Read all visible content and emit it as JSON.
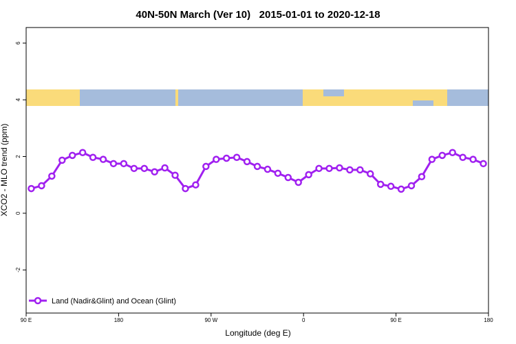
{
  "chart_data": {
    "type": "line",
    "title": "40N-50N March (Ver 10)   2015-01-01 to 2020-12-18",
    "xlabel": "Longitude (deg E)",
    "ylabel": "XCO2 - MLO trend (ppm)",
    "x": [
      95,
      105,
      115,
      125,
      135,
      145,
      155,
      165,
      175,
      185,
      195,
      205,
      215,
      225,
      235,
      245,
      255,
      265,
      275,
      285,
      295,
      305,
      315,
      325,
      335,
      345,
      355,
      365,
      375,
      385,
      395,
      405,
      415,
      425,
      435,
      445,
      455,
      465,
      475,
      485,
      495,
      505,
      515,
      525,
      535
    ],
    "series": [
      {
        "name": "Land (Nadir&Glint) and Ocean (Glint)",
        "color": "#a020f0",
        "values": [
          0.87,
          0.97,
          1.31,
          1.87,
          2.04,
          2.14,
          1.97,
          1.9,
          1.75,
          1.75,
          1.58,
          1.58,
          1.46,
          1.6,
          1.34,
          0.87,
          1.0,
          1.65,
          1.9,
          1.94,
          1.97,
          1.82,
          1.65,
          1.55,
          1.41,
          1.26,
          1.09,
          1.36,
          1.58,
          1.58,
          1.6,
          1.53,
          1.53,
          1.39,
          1.02,
          0.95,
          0.85,
          0.97,
          1.29,
          1.9,
          2.04,
          2.14,
          1.97,
          1.9,
          1.75
        ]
      }
    ],
    "xlim": [
      90,
      540
    ],
    "xticks": [
      {
        "value": 90,
        "label": "90 E"
      },
      180,
      {
        "value": 270,
        "label": "90 W"
      },
      {
        "value": 360,
        "label": "0"
      },
      {
        "value": 450,
        "label": "90 E"
      },
      {
        "value": 540,
        "label": "180"
      }
    ],
    "ylim": [
      -3.52,
      6.55
    ],
    "yticks": [
      -2,
      0,
      2,
      4,
      6
    ],
    "legend": "bottom-left"
  }
}
